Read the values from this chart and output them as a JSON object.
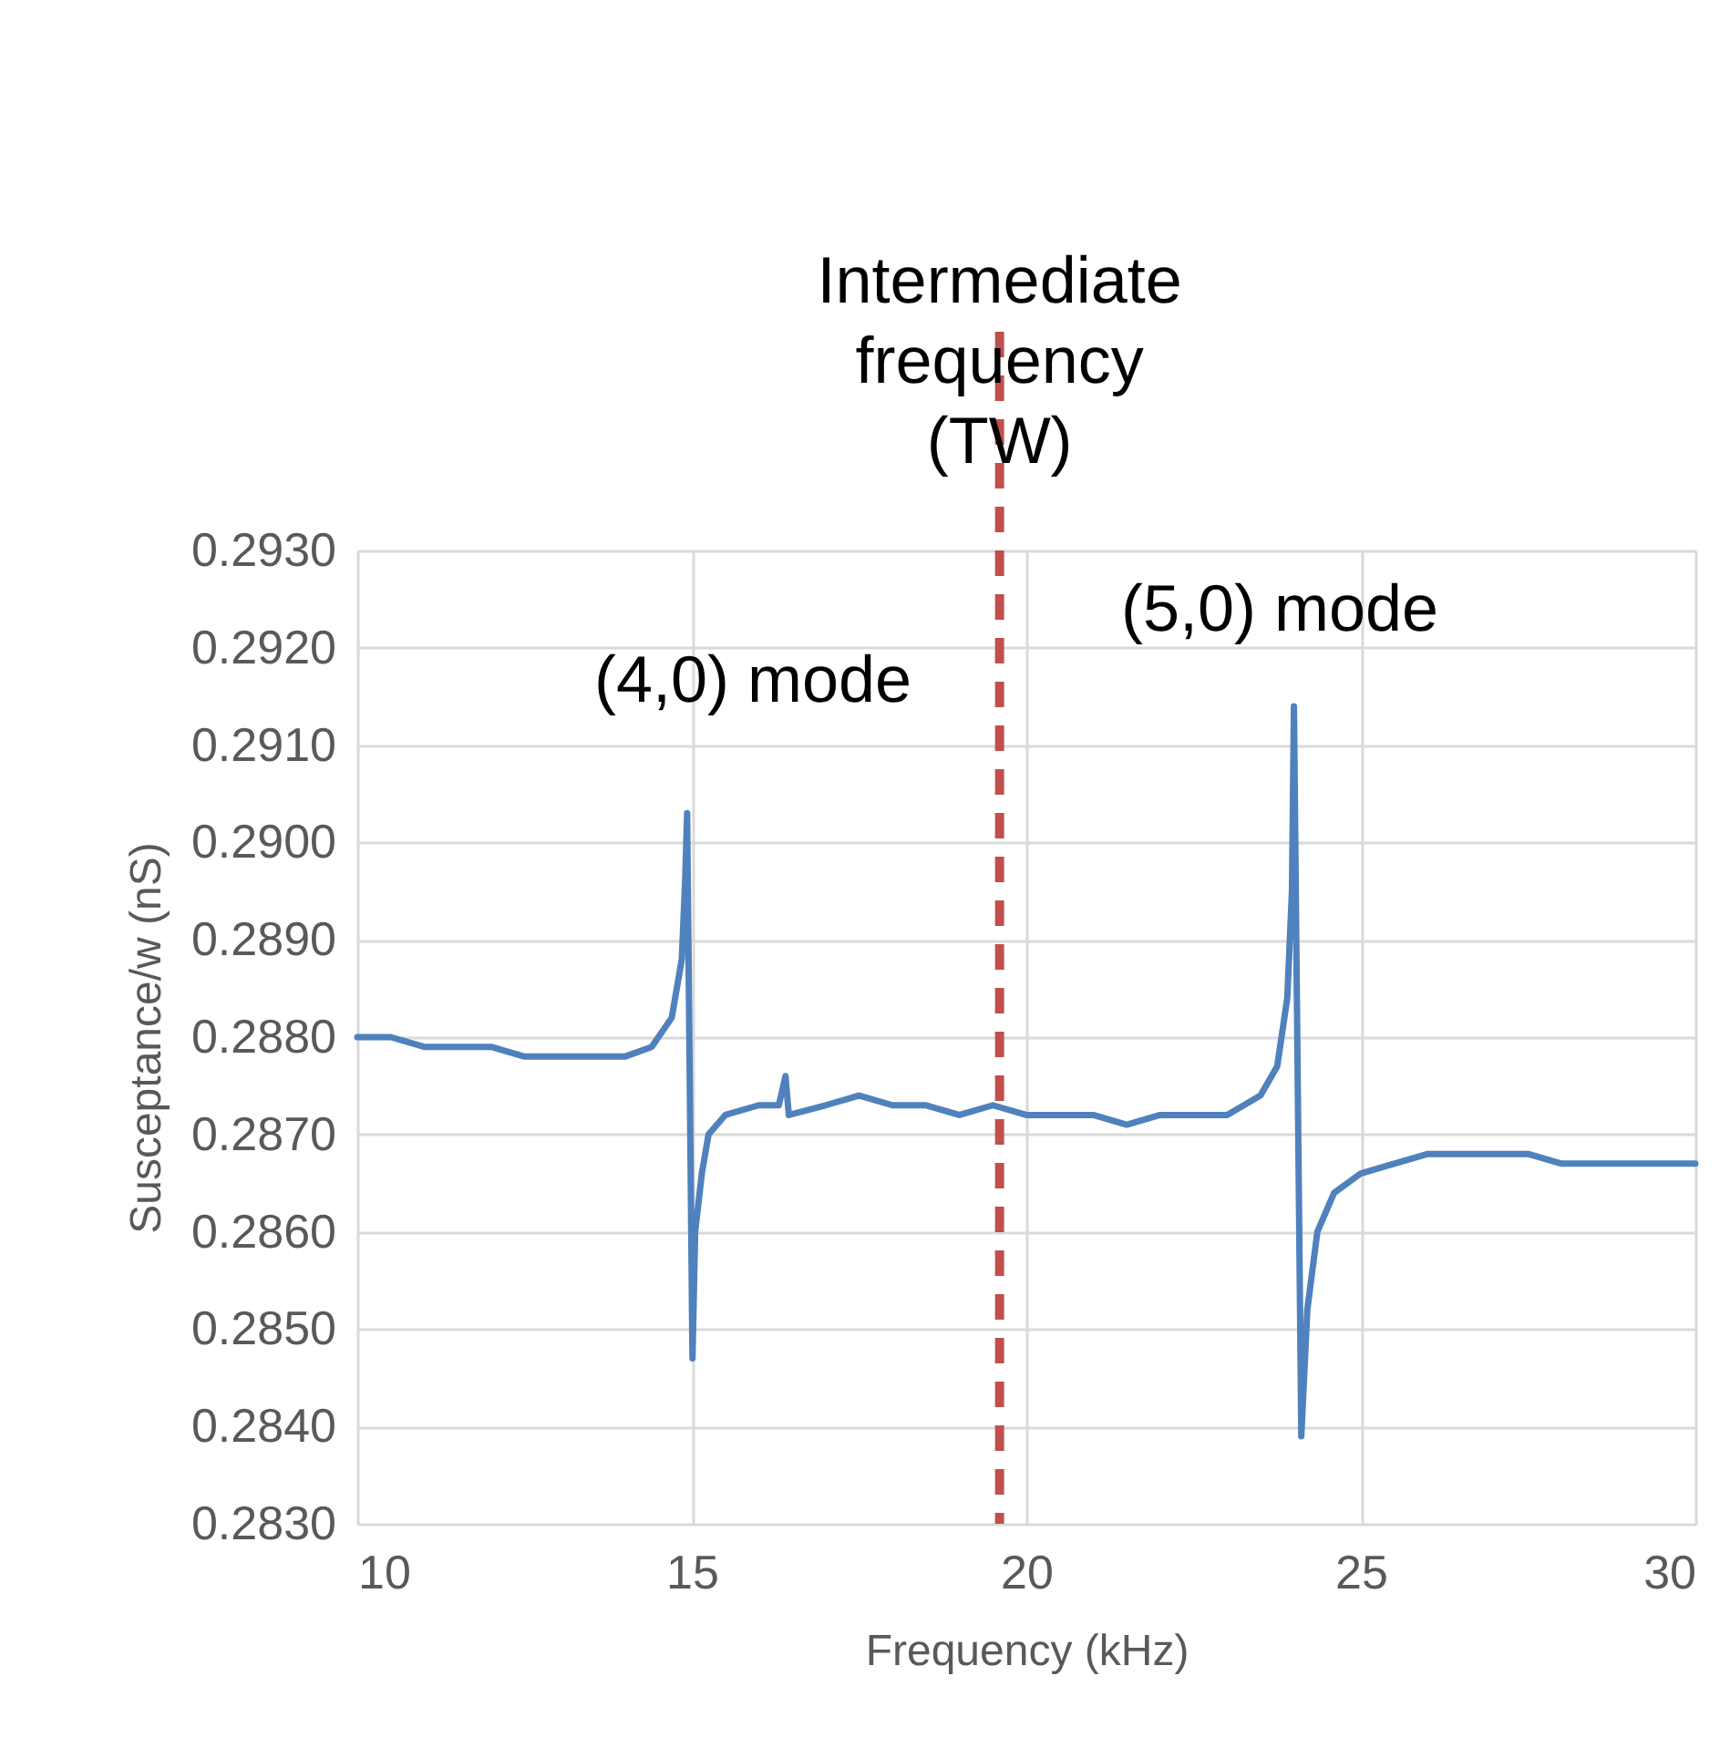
{
  "chart_data": {
    "type": "line",
    "xlabel": "Frequency (kHz)",
    "ylabel": "Susceptance/w (nS)",
    "x": [
      10.0,
      10.5,
      11.0,
      11.5,
      12.0,
      12.5,
      13.0,
      13.5,
      14.0,
      14.4,
      14.7,
      14.85,
      14.9,
      14.93,
      15.01,
      15.05,
      15.15,
      15.25,
      15.5,
      16.0,
      16.3,
      16.4,
      16.45,
      17.0,
      17.5,
      18.0,
      18.5,
      19.0,
      19.5,
      20.0,
      20.5,
      21.0,
      21.5,
      22.0,
      22.5,
      23.0,
      23.5,
      23.75,
      23.9,
      23.97,
      24.0,
      24.11,
      24.2,
      24.35,
      24.6,
      25.0,
      25.5,
      26.0,
      26.5,
      27.0,
      27.5,
      28.0,
      28.5,
      29.0,
      29.5,
      30.0
    ],
    "series": [
      {
        "color": "#4f81bd",
        "values": [
          0.288,
          0.288,
          0.2879,
          0.2879,
          0.2879,
          0.2878,
          0.2878,
          0.2878,
          0.2878,
          0.2879,
          0.2882,
          0.2888,
          0.2896,
          0.2903,
          0.2847,
          0.286,
          0.2866,
          0.287,
          0.2872,
          0.2873,
          0.2873,
          0.2876,
          0.2872,
          0.2873,
          0.2874,
          0.2873,
          0.2873,
          0.2872,
          0.2873,
          0.2872,
          0.2872,
          0.2872,
          0.2871,
          0.2872,
          0.2872,
          0.2872,
          0.2874,
          0.2877,
          0.2884,
          0.2895,
          0.2914,
          0.2839,
          0.2852,
          0.286,
          0.2864,
          0.2866,
          0.2867,
          0.2868,
          0.2868,
          0.2868,
          0.2868,
          0.2867,
          0.2867,
          0.2867,
          0.2867,
          0.2867
        ]
      }
    ],
    "xlim": [
      10,
      30
    ],
    "xticks": [
      10,
      15,
      20,
      25,
      30
    ],
    "ylim": [
      0.283,
      0.293
    ],
    "yticks": [
      {
        "value": 0.283,
        "label": "0.2830"
      },
      {
        "value": 0.284,
        "label": "0.2840"
      },
      {
        "value": 0.285,
        "label": "0.2850"
      },
      {
        "value": 0.286,
        "label": "0.2860"
      },
      {
        "value": 0.287,
        "label": "0.2870"
      },
      {
        "value": 0.288,
        "label": "0.2880"
      },
      {
        "value": 0.289,
        "label": "0.2890"
      },
      {
        "value": 0.29,
        "label": "0.2900"
      },
      {
        "value": 0.291,
        "label": "0.2910"
      },
      {
        "value": 0.292,
        "label": "0.2920"
      },
      {
        "value": 0.293,
        "label": "0.2930"
      }
    ],
    "grid": true,
    "line_style": "solid",
    "ref_lines": [
      {
        "axis": "x",
        "value": 19.6,
        "label": "Intermediate frequency (TW)",
        "color": "#c0504d",
        "line_style": "dashed"
      }
    ],
    "annotations": [
      "(4,0) mode",
      "(5,0) mode"
    ]
  }
}
